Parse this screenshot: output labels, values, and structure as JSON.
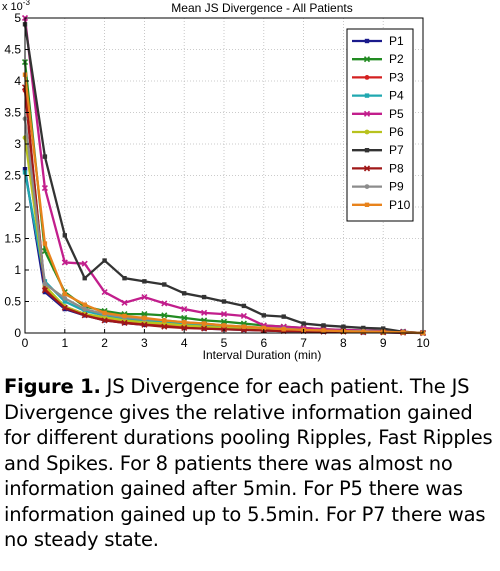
{
  "chart_data": {
    "type": "line",
    "title": "Mean JS Divergence - All Patients",
    "xlabel": "Interval Duration (min)",
    "ylabel": "",
    "y_multiplier_label": "x 10",
    "y_multiplier_exp": "-3",
    "xlim": [
      0,
      10
    ],
    "ylim": [
      0,
      5
    ],
    "x_ticks": [
      "0",
      "1",
      "2",
      "3",
      "4",
      "5",
      "6",
      "7",
      "8",
      "9",
      "10"
    ],
    "y_ticks": [
      "0",
      "0.5",
      "1",
      "1.5",
      "2",
      "2.5",
      "3",
      "3.5",
      "4",
      "4.5",
      "5"
    ],
    "grid": true,
    "legend_position": "top-right",
    "x": [
      0,
      0.5,
      1,
      1.5,
      2,
      2.5,
      3,
      3.5,
      4,
      4.5,
      5,
      5.5,
      6,
      6.5,
      7,
      7.5,
      8,
      8.5,
      9,
      9.5,
      10
    ],
    "series": [
      {
        "name": "P1",
        "color": "#1a1a8c",
        "marker": "square",
        "values": [
          2.6,
          0.65,
          0.38,
          0.28,
          0.2,
          0.16,
          0.13,
          0.11,
          0.09,
          0.07,
          0.06,
          0.05,
          0.04,
          0.03,
          0.03,
          0.02,
          0.02,
          0.01,
          0.01,
          0.005,
          0
        ]
      },
      {
        "name": "P2",
        "color": "#228b22",
        "marker": "x",
        "values": [
          4.3,
          1.3,
          0.65,
          0.42,
          0.35,
          0.3,
          0.3,
          0.28,
          0.24,
          0.2,
          0.18,
          0.15,
          0.12,
          0.1,
          0.08,
          0.06,
          0.05,
          0.04,
          0.03,
          0.02,
          0
        ]
      },
      {
        "name": "P3",
        "color": "#d42020",
        "marker": "dot",
        "values": [
          3.85,
          0.7,
          0.42,
          0.3,
          0.22,
          0.18,
          0.15,
          0.12,
          0.1,
          0.08,
          0.07,
          0.06,
          0.05,
          0.04,
          0.03,
          0.03,
          0.02,
          0.02,
          0.01,
          0.01,
          0
        ]
      },
      {
        "name": "P4",
        "color": "#20a8b0",
        "marker": "square",
        "values": [
          2.55,
          0.82,
          0.5,
          0.35,
          0.28,
          0.22,
          0.2,
          0.18,
          0.15,
          0.12,
          0.1,
          0.09,
          0.07,
          0.06,
          0.05,
          0.04,
          0.03,
          0.02,
          0.02,
          0.01,
          0
        ]
      },
      {
        "name": "P5",
        "color": "#c21e8c",
        "marker": "x",
        "values": [
          5.0,
          2.3,
          1.12,
          1.1,
          0.65,
          0.48,
          0.57,
          0.47,
          0.38,
          0.32,
          0.3,
          0.27,
          0.12,
          0.1,
          0.08,
          0.06,
          0.05,
          0.04,
          0.03,
          0.02,
          0
        ]
      },
      {
        "name": "P6",
        "color": "#b8c21e",
        "marker": "dot",
        "values": [
          3.1,
          0.75,
          0.42,
          0.3,
          0.25,
          0.2,
          0.17,
          0.15,
          0.12,
          0.1,
          0.08,
          0.07,
          0.06,
          0.05,
          0.04,
          0.03,
          0.02,
          0.02,
          0.01,
          0.01,
          0
        ]
      },
      {
        "name": "P7",
        "color": "#333333",
        "marker": "square",
        "values": [
          4.9,
          2.8,
          1.55,
          0.87,
          1.15,
          0.87,
          0.82,
          0.77,
          0.63,
          0.57,
          0.5,
          0.43,
          0.28,
          0.26,
          0.15,
          0.12,
          0.1,
          0.08,
          0.07,
          0.02,
          0
        ]
      },
      {
        "name": "P8",
        "color": "#a01818",
        "marker": "x",
        "values": [
          3.9,
          0.68,
          0.4,
          0.28,
          0.2,
          0.16,
          0.13,
          0.1,
          0.08,
          0.07,
          0.06,
          0.05,
          0.04,
          0.03,
          0.03,
          0.02,
          0.02,
          0.01,
          0.01,
          0.005,
          0
        ]
      },
      {
        "name": "P9",
        "color": "#8c8c8c",
        "marker": "dot",
        "values": [
          3.4,
          0.78,
          0.55,
          0.38,
          0.3,
          0.25,
          0.22,
          0.2,
          0.17,
          0.15,
          0.12,
          0.1,
          0.08,
          0.07,
          0.05,
          0.04,
          0.03,
          0.03,
          0.02,
          0.01,
          0
        ]
      },
      {
        "name": "P10",
        "color": "#e8831c",
        "marker": "square",
        "values": [
          4.1,
          1.42,
          0.62,
          0.45,
          0.32,
          0.27,
          0.24,
          0.2,
          0.17,
          0.15,
          0.12,
          0.1,
          0.08,
          0.06,
          0.05,
          0.04,
          0.03,
          0.02,
          0.02,
          0.01,
          0
        ]
      }
    ]
  },
  "caption": {
    "label": "Figure 1.",
    "text": " JS Divergence for each patient.  The JS Divergence gives the relative information gained for different durations pooling Ripples, Fast Ripples and Spikes. For 8 patients there was almost no information gained after 5min. For P5 there was information gained up to 5.5min. For P7 there was no steady state."
  }
}
